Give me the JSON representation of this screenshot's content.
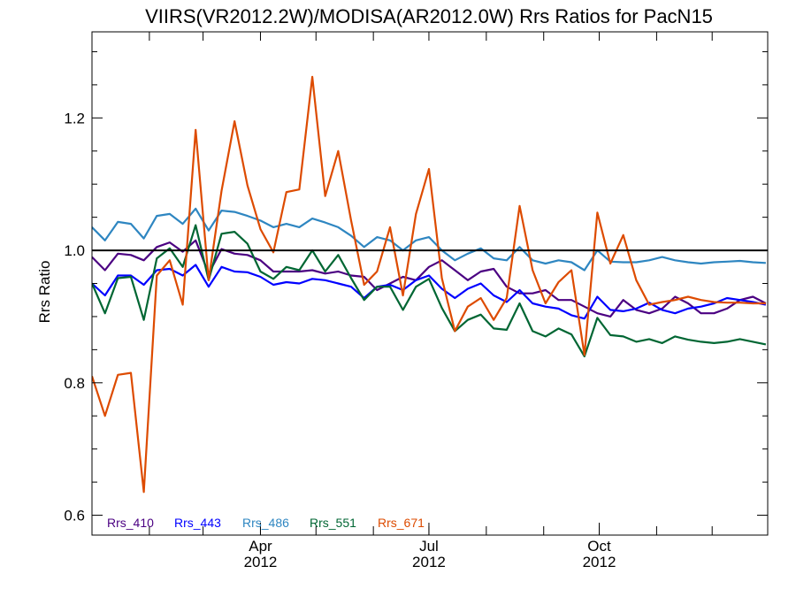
{
  "chart_data": {
    "type": "line",
    "title": "VIIRS(VR2012.2W)/MODISA(AR2012.0W)  Rrs Ratios for PacN15",
    "xlabel": "",
    "ylabel": "Rrs Ratio",
    "xlim": [
      "2012-01-01",
      "2012-12-31"
    ],
    "ylim": [
      0.57,
      1.33
    ],
    "yticks": [
      0.6,
      0.8,
      1.0,
      1.2
    ],
    "ytick_labels": [
      "0.6",
      "0.8",
      "1.0",
      "1.2"
    ],
    "xticks": [
      {
        "date": "2012-04-01",
        "month": "Apr",
        "year": "2012"
      },
      {
        "date": "2012-07-01",
        "month": "Jul",
        "year": "2012"
      },
      {
        "date": "2012-10-01",
        "month": "Oct",
        "year": "2012"
      }
    ],
    "reference_line": 1.0,
    "grid": false,
    "legend_position": "bottom-left",
    "x": [
      "2012-01-01",
      "2012-01-08",
      "2012-01-15",
      "2012-01-22",
      "2012-01-29",
      "2012-02-05",
      "2012-02-12",
      "2012-02-19",
      "2012-02-26",
      "2012-03-04",
      "2012-03-11",
      "2012-03-18",
      "2012-03-25",
      "2012-04-01",
      "2012-04-08",
      "2012-04-15",
      "2012-04-22",
      "2012-04-29",
      "2012-05-06",
      "2012-05-13",
      "2012-05-20",
      "2012-05-27",
      "2012-06-03",
      "2012-06-10",
      "2012-06-17",
      "2012-06-24",
      "2012-07-01",
      "2012-07-08",
      "2012-07-15",
      "2012-07-22",
      "2012-07-29",
      "2012-08-05",
      "2012-08-12",
      "2012-08-19",
      "2012-08-26",
      "2012-09-02",
      "2012-09-09",
      "2012-09-16",
      "2012-09-23",
      "2012-09-30",
      "2012-10-07",
      "2012-10-14",
      "2012-10-21",
      "2012-10-28",
      "2012-11-04",
      "2012-11-11",
      "2012-11-18",
      "2012-11-25",
      "2012-12-02",
      "2012-12-09",
      "2012-12-16",
      "2012-12-23",
      "2012-12-30"
    ],
    "series": [
      {
        "name": "Rrs_410",
        "color": "#4b0082",
        "values": [
          0.99,
          0.97,
          0.995,
          0.993,
          0.985,
          1.005,
          1.012,
          0.998,
          1.015,
          0.965,
          1.002,
          0.995,
          0.993,
          0.985,
          0.968,
          0.968,
          0.968,
          0.97,
          0.965,
          0.968,
          0.962,
          0.96,
          0.94,
          0.95,
          0.96,
          0.955,
          0.975,
          0.985,
          0.97,
          0.955,
          0.968,
          0.972,
          0.945,
          0.935,
          0.935,
          0.94,
          0.925,
          0.925,
          0.915,
          0.905,
          0.9,
          0.925,
          0.91,
          0.905,
          0.912,
          0.93,
          0.92,
          0.905,
          0.905,
          0.912,
          0.925,
          0.93,
          0.92
        ]
      },
      {
        "name": "Rrs_443",
        "color": "#0000ff",
        "values": [
          0.95,
          0.932,
          0.962,
          0.962,
          0.948,
          0.97,
          0.972,
          0.962,
          0.978,
          0.945,
          0.975,
          0.968,
          0.967,
          0.96,
          0.948,
          0.952,
          0.95,
          0.957,
          0.955,
          0.95,
          0.945,
          0.928,
          0.945,
          0.948,
          0.94,
          0.955,
          0.962,
          0.942,
          0.928,
          0.942,
          0.95,
          0.932,
          0.922,
          0.94,
          0.92,
          0.915,
          0.912,
          0.902,
          0.897,
          0.93,
          0.91,
          0.908,
          0.912,
          0.921,
          0.91,
          0.905,
          0.912,
          0.915,
          0.92,
          0.928,
          0.925,
          0.922,
          0.918
        ]
      },
      {
        "name": "Rrs_486",
        "color": "#2e86c1",
        "values": [
          1.035,
          1.015,
          1.043,
          1.04,
          1.018,
          1.052,
          1.055,
          1.04,
          1.063,
          1.03,
          1.06,
          1.058,
          1.052,
          1.045,
          1.035,
          1.04,
          1.035,
          1.048,
          1.042,
          1.035,
          1.022,
          1.005,
          1.02,
          1.015,
          1.0,
          1.015,
          1.02,
          1.0,
          0.985,
          0.995,
          1.003,
          0.988,
          0.985,
          1.005,
          0.985,
          0.98,
          0.985,
          0.982,
          0.97,
          1.0,
          0.983,
          0.982,
          0.982,
          0.985,
          0.99,
          0.985,
          0.982,
          0.98,
          0.982,
          0.983,
          0.984,
          0.982,
          0.981
        ]
      },
      {
        "name": "Rrs_551",
        "color": "#006633",
        "values": [
          0.95,
          0.905,
          0.958,
          0.96,
          0.895,
          0.988,
          1.003,
          0.975,
          1.038,
          0.955,
          1.025,
          1.028,
          1.01,
          0.968,
          0.957,
          0.975,
          0.97,
          1.0,
          0.968,
          0.993,
          0.958,
          0.925,
          0.945,
          0.945,
          0.91,
          0.945,
          0.957,
          0.913,
          0.878,
          0.895,
          0.903,
          0.882,
          0.88,
          0.92,
          0.878,
          0.87,
          0.882,
          0.873,
          0.84,
          0.898,
          0.872,
          0.87,
          0.862,
          0.866,
          0.86,
          0.87,
          0.865,
          0.862,
          0.86,
          0.862,
          0.866,
          0.862,
          0.858
        ]
      },
      {
        "name": "Rrs_671",
        "color": "#dd4b00",
        "values": [
          0.81,
          0.75,
          0.812,
          0.815,
          0.635,
          0.962,
          0.985,
          0.918,
          1.182,
          0.955,
          1.09,
          1.195,
          1.098,
          1.032,
          0.997,
          1.088,
          1.092,
          1.262,
          1.082,
          1.15,
          1.045,
          0.948,
          0.968,
          1.035,
          0.932,
          1.055,
          1.123,
          0.958,
          0.878,
          0.915,
          0.928,
          0.895,
          0.928,
          1.067,
          0.97,
          0.92,
          0.952,
          0.97,
          0.842,
          1.057,
          0.98,
          1.023,
          0.955,
          0.918,
          0.922,
          0.925,
          0.93,
          0.925,
          0.922,
          0.921,
          0.921,
          0.92,
          0.92
        ]
      }
    ]
  }
}
